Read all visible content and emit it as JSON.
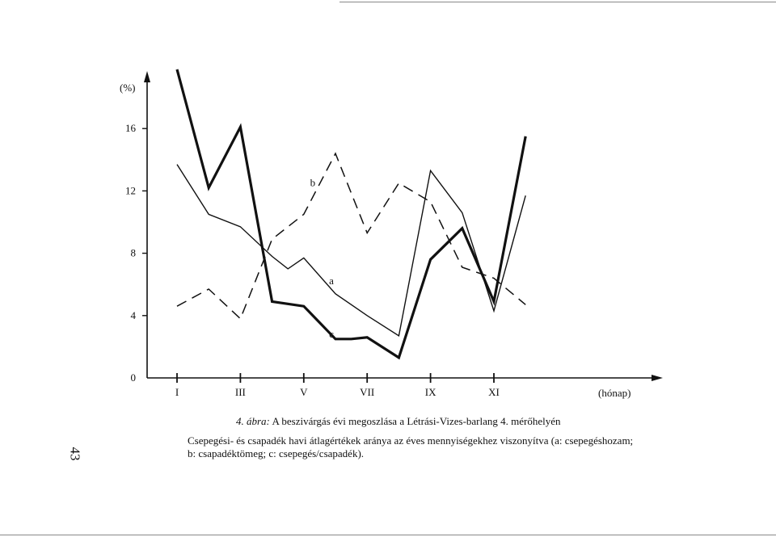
{
  "chart_data": {
    "type": "line",
    "ylabel": "(%)",
    "xlabel": "(hónap)",
    "ylim": [
      0,
      20
    ],
    "xlim": [
      1,
      13
    ],
    "yticks": [
      0,
      4,
      8,
      12,
      16
    ],
    "ytick_labels": [
      "0",
      "4",
      "8",
      "12",
      "16"
    ],
    "xticks": [
      1,
      3,
      5,
      7,
      9,
      11
    ],
    "xtick_labels": [
      "I",
      "III",
      "V",
      "VII",
      "IX",
      "XI"
    ],
    "grid": false,
    "series": [
      {
        "name": "a",
        "style": "solid-thin",
        "x": [
          1,
          2,
          3,
          4,
          4.5,
          5,
          6,
          7,
          8,
          9,
          10,
          11,
          12
        ],
        "y": [
          13.7,
          10.5,
          9.7,
          7.8,
          7.0,
          7.7,
          5.4,
          4.0,
          2.7,
          13.3,
          10.6,
          4.3,
          11.7
        ]
      },
      {
        "name": "b",
        "style": "dashed",
        "x": [
          1,
          2,
          3,
          4,
          5,
          6,
          7,
          8,
          9,
          10,
          11,
          12
        ],
        "y": [
          4.6,
          5.7,
          3.8,
          8.9,
          10.5,
          14.4,
          9.3,
          12.5,
          11.3,
          7.1,
          6.4,
          4.7
        ]
      },
      {
        "name": "c",
        "style": "solid-thick",
        "x": [
          1,
          2,
          3,
          4,
          5,
          6,
          6.5,
          7,
          8,
          9,
          10,
          11,
          12
        ],
        "y": [
          19.8,
          12.2,
          16.1,
          4.9,
          4.6,
          2.5,
          2.5,
          2.6,
          1.3,
          7.6,
          9.6,
          4.9,
          15.5
        ]
      }
    ]
  },
  "caption": {
    "figure_number": "4. ábra:",
    "title": "A beszivárgás évi megoszlása a Létrási-Vizes-barlang 4. mérőhelyén",
    "line1": "Csepegési- és csapadék havi átlagértékek aránya az éves mennyiségekhez viszonyítva (a: csepegéshozam;",
    "line2": "b: csapadéktömeg; c: csepegés/csapadék)."
  },
  "page_number": "43"
}
